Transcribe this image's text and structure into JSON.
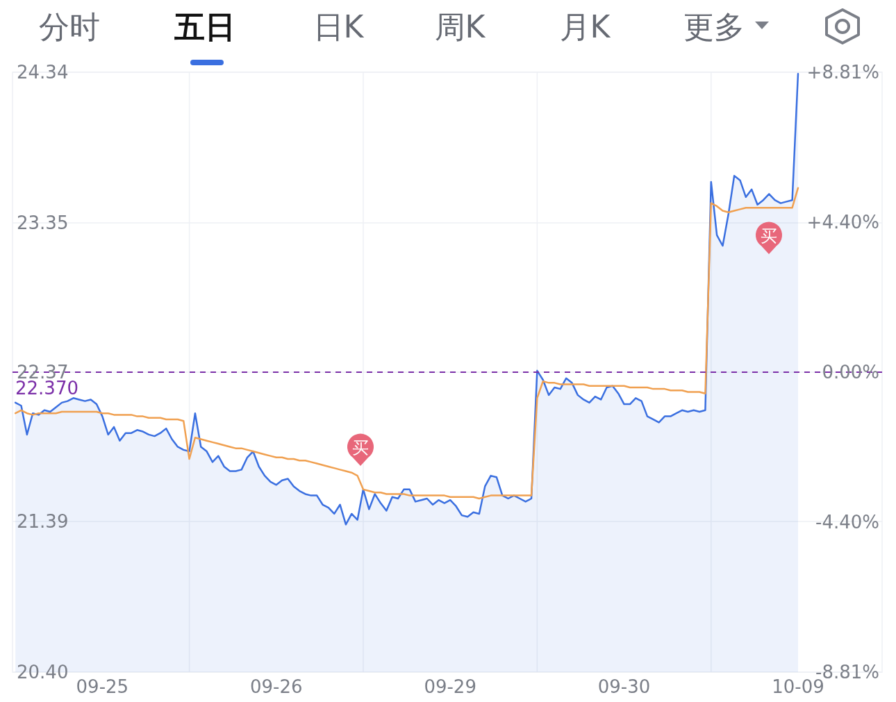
{
  "chart_data": {
    "type": "line",
    "annotations": [
      "分时",
      "五日",
      "日K",
      "周K",
      "月K",
      "更多",
      "买",
      "买"
    ],
    "categories": [
      null,
      null,
      null,
      null,
      null,
      null,
      null,
      null,
      null,
      null,
      null,
      null,
      null,
      null,
      null,
      "09-25",
      null,
      null,
      null,
      null,
      null,
      null,
      null,
      null,
      null,
      null,
      null,
      null,
      null,
      null,
      null,
      null,
      null,
      null,
      null,
      null,
      null,
      null,
      null,
      null,
      null,
      null,
      null,
      null,
      null,
      "09-26",
      null,
      null,
      null,
      null,
      null,
      null,
      null,
      null,
      null,
      null,
      null,
      null,
      null,
      null,
      null,
      null,
      null,
      null,
      null,
      null,
      null,
      null,
      null,
      null,
      null,
      null,
      null,
      null,
      null,
      "09-29",
      null,
      null,
      null,
      null,
      null,
      null,
      null,
      null,
      null,
      null,
      null,
      null,
      null,
      null,
      null,
      null,
      null,
      null,
      null,
      null,
      null,
      null,
      null,
      null,
      null,
      null,
      null,
      null,
      null,
      "09-30",
      null,
      null,
      null,
      null,
      null,
      null,
      null,
      null,
      null,
      null,
      null,
      null,
      null,
      null,
      null,
      null,
      null,
      null,
      null,
      null,
      null,
      null,
      null,
      null,
      null,
      null,
      null,
      null,
      null,
      "10-09",
      null,
      null,
      null,
      null,
      null,
      null,
      null,
      null,
      null,
      null,
      null,
      null,
      null,
      null
    ],
    "ylim": [
      20.4,
      24.34
    ],
    "yticks": [
      {
        "value": 20.4,
        "label": "20.40"
      },
      {
        "value": 21.39,
        "label": "21.39"
      },
      {
        "value": 22.37,
        "label": "22.37"
      },
      {
        "value": 23.35,
        "label": "23.35"
      },
      {
        "value": 24.34,
        "label": "24.34"
      }
    ],
    "y2lim": [
      -8.81,
      8.81
    ],
    "y2ticks": [
      {
        "value": -8.81,
        "label": "-8.81%"
      },
      {
        "value": -4.4,
        "label": "-4.40%"
      },
      {
        "value": 0,
        "label": "0.00%"
      },
      {
        "value": 4.4,
        "label": "+4.40%"
      },
      {
        "value": 8.81,
        "label": "+8.81%"
      }
    ],
    "grid": true,
    "ref_lines": [
      {
        "axis": "y",
        "value": 22.37,
        "label": "22.370",
        "color": "#7b2fa8",
        "line_style": "dashed"
      }
    ],
    "series": [
      {
        "type": "area",
        "color": "#3a6fe0",
        "values": [
          22.17,
          22.15,
          21.96,
          22.1,
          22.09,
          22.12,
          22.11,
          22.14,
          22.17,
          22.18,
          22.2,
          22.19,
          22.18,
          22.19,
          22.16,
          22.08,
          21.96,
          22.01,
          21.92,
          21.97,
          21.97,
          21.99,
          21.98,
          21.96,
          21.95,
          21.97,
          22.0,
          21.93,
          21.88,
          21.86,
          21.85,
          22.1,
          21.88,
          21.85,
          21.78,
          21.82,
          21.75,
          21.72,
          21.72,
          21.73,
          21.81,
          21.85,
          21.75,
          21.69,
          21.65,
          21.63,
          21.66,
          21.67,
          21.62,
          21.59,
          21.57,
          21.56,
          21.56,
          21.5,
          21.48,
          21.44,
          21.5,
          21.37,
          21.44,
          21.4,
          21.6,
          21.47,
          21.57,
          21.51,
          21.46,
          21.55,
          21.54,
          21.6,
          21.6,
          21.52,
          21.53,
          21.54,
          21.5,
          21.53,
          21.51,
          21.53,
          21.49,
          21.43,
          21.42,
          21.45,
          21.44,
          21.62,
          21.69,
          21.68,
          21.56,
          21.54,
          21.56,
          21.54,
          21.52,
          21.54,
          22.38,
          22.32,
          22.22,
          22.27,
          22.26,
          22.33,
          22.3,
          22.22,
          22.19,
          22.17,
          22.21,
          22.19,
          22.27,
          22.28,
          22.23,
          22.16,
          22.16,
          22.2,
          22.18,
          22.08,
          22.06,
          22.04,
          22.08,
          22.08,
          22.1,
          22.12,
          22.11,
          22.12,
          22.11,
          22.12,
          23.62,
          23.27,
          23.2,
          23.41,
          23.66,
          23.63,
          23.52,
          23.57,
          23.47,
          23.5,
          23.54,
          23.5,
          23.48,
          23.49,
          23.5,
          24.33,
          null,
          null,
          null,
          null,
          null,
          null,
          null,
          null,
          null,
          null,
          null,
          null,
          null,
          null
        ]
      },
      {
        "color": "#f0a050",
        "values": [
          22.1,
          22.12,
          22.1,
          22.09,
          22.1,
          22.1,
          22.1,
          22.1,
          22.11,
          22.11,
          22.11,
          22.11,
          22.11,
          22.11,
          22.11,
          22.1,
          22.1,
          22.09,
          22.09,
          22.09,
          22.09,
          22.08,
          22.08,
          22.07,
          22.07,
          22.07,
          22.06,
          22.06,
          22.06,
          22.05,
          21.8,
          21.94,
          21.93,
          21.92,
          21.91,
          21.9,
          21.89,
          21.88,
          21.87,
          21.87,
          21.86,
          21.85,
          21.84,
          21.83,
          21.82,
          21.81,
          21.81,
          21.8,
          21.8,
          21.79,
          21.79,
          21.78,
          21.77,
          21.76,
          21.75,
          21.74,
          21.73,
          21.72,
          21.71,
          21.69,
          21.6,
          21.59,
          21.58,
          21.58,
          21.57,
          21.57,
          21.57,
          21.57,
          21.56,
          21.56,
          21.56,
          21.56,
          21.56,
          21.56,
          21.56,
          21.55,
          21.55,
          21.55,
          21.55,
          21.55,
          21.54,
          21.55,
          21.56,
          21.56,
          21.56,
          21.56,
          21.56,
          21.56,
          21.56,
          21.56,
          22.2,
          22.31,
          22.3,
          22.3,
          22.29,
          22.29,
          22.29,
          22.29,
          22.29,
          22.28,
          22.28,
          22.28,
          22.28,
          22.28,
          22.28,
          22.28,
          22.27,
          22.27,
          22.27,
          22.27,
          22.26,
          22.26,
          22.26,
          22.25,
          22.25,
          22.25,
          22.24,
          22.24,
          22.24,
          22.23,
          23.48,
          23.46,
          23.43,
          23.42,
          23.43,
          23.44,
          23.45,
          23.45,
          23.45,
          23.45,
          23.45,
          23.45,
          23.45,
          23.45,
          23.45,
          23.58,
          null,
          null,
          null,
          null,
          null,
          null,
          null,
          null,
          null,
          null,
          null,
          null,
          null,
          null
        ]
      }
    ]
  }
}
